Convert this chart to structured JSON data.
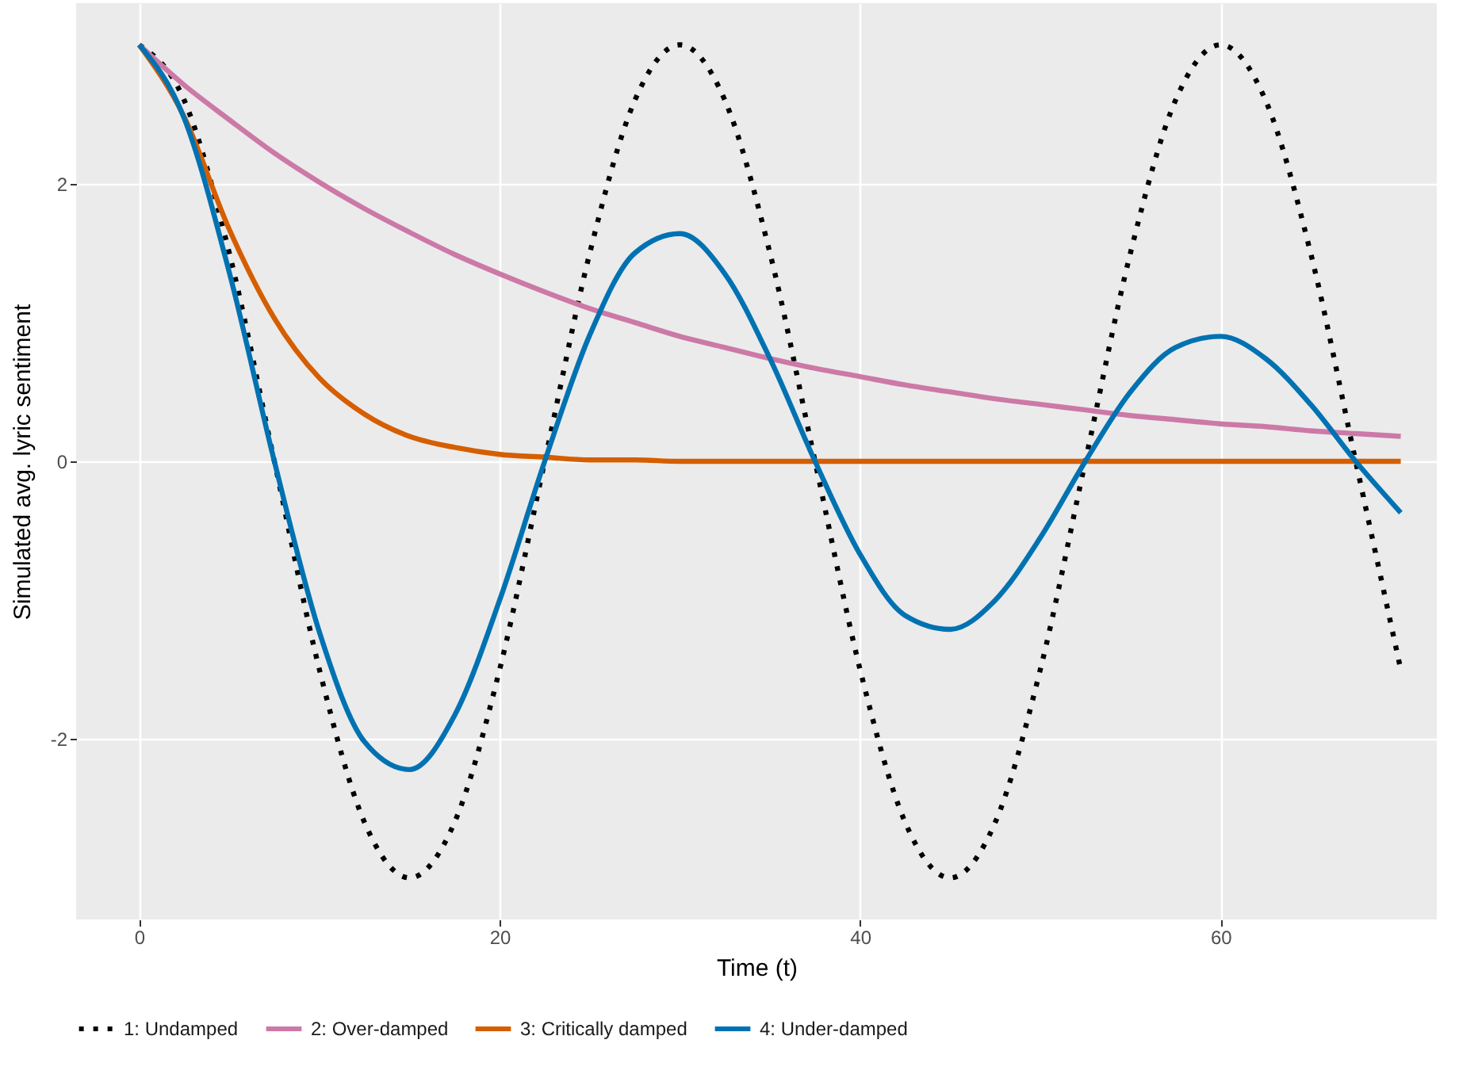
{
  "chart_data": {
    "type": "line",
    "xlabel": "Time (t)",
    "ylabel": "Simulated avg. lyric sentiment",
    "x": [
      0,
      2.5,
      5,
      7.5,
      10,
      12.5,
      15,
      17.5,
      20,
      22.5,
      25,
      27.5,
      30,
      32.5,
      35,
      37.5,
      40,
      42.5,
      45,
      47.5,
      50,
      52.5,
      55,
      57.5,
      60,
      62.5,
      65,
      67.5,
      70
    ],
    "series": [
      {
        "name": "1: Undamped",
        "color": "#000000",
        "line_style": "dotted",
        "values": [
          3,
          2.6,
          1.5,
          0,
          -1.5,
          -2.6,
          -3,
          -2.6,
          -1.5,
          0,
          1.5,
          2.6,
          3,
          2.6,
          1.5,
          0,
          -1.5,
          -2.6,
          -3,
          -2.6,
          -1.5,
          0,
          1.5,
          2.6,
          3,
          2.6,
          1.5,
          0,
          -1.5
        ]
      },
      {
        "name": "2: Over-damped",
        "color": "#cc79a7",
        "line_style": "solid",
        "values": [
          3,
          2.71,
          2.46,
          2.22,
          2.01,
          1.82,
          1.65,
          1.49,
          1.35,
          1.22,
          1.1,
          1,
          0.9,
          0.82,
          0.74,
          0.67,
          0.61,
          0.55,
          0.5,
          0.45,
          0.41,
          0.37,
          0.33,
          0.3,
          0.27,
          0.25,
          0.22,
          0.2,
          0.18
        ]
      },
      {
        "name": "3: Critically damped",
        "color": "#d55e00",
        "line_style": "solid",
        "values": [
          3,
          2.48,
          1.67,
          1.03,
          0.6,
          0.34,
          0.18,
          0.1,
          0.05,
          0.03,
          0.01,
          0.01,
          0,
          0,
          0,
          0,
          0,
          0,
          0,
          0,
          0,
          0,
          0,
          0,
          0,
          0,
          0,
          0,
          0
        ]
      },
      {
        "name": "4: Under-damped",
        "color": "#0072b2",
        "line_style": "solid",
        "values": [
          3,
          2.47,
          1.36,
          0,
          -1.23,
          -2.02,
          -2.22,
          -1.83,
          -1,
          0,
          0.91,
          1.5,
          1.64,
          1.35,
          0.74,
          0,
          -0.67,
          -1.11,
          -1.21,
          -1,
          -0.55,
          0,
          0.5,
          0.82,
          0.9,
          0.74,
          0.41,
          0,
          -0.37
        ]
      }
    ],
    "xlim": [
      -3.5,
      72
    ],
    "xticks": [
      0,
      20,
      40,
      60
    ],
    "ylim": [
      -3.3,
      3.3
    ],
    "yticks": [
      -2,
      0,
      2
    ],
    "grid": true,
    "legend": "bottom"
  }
}
